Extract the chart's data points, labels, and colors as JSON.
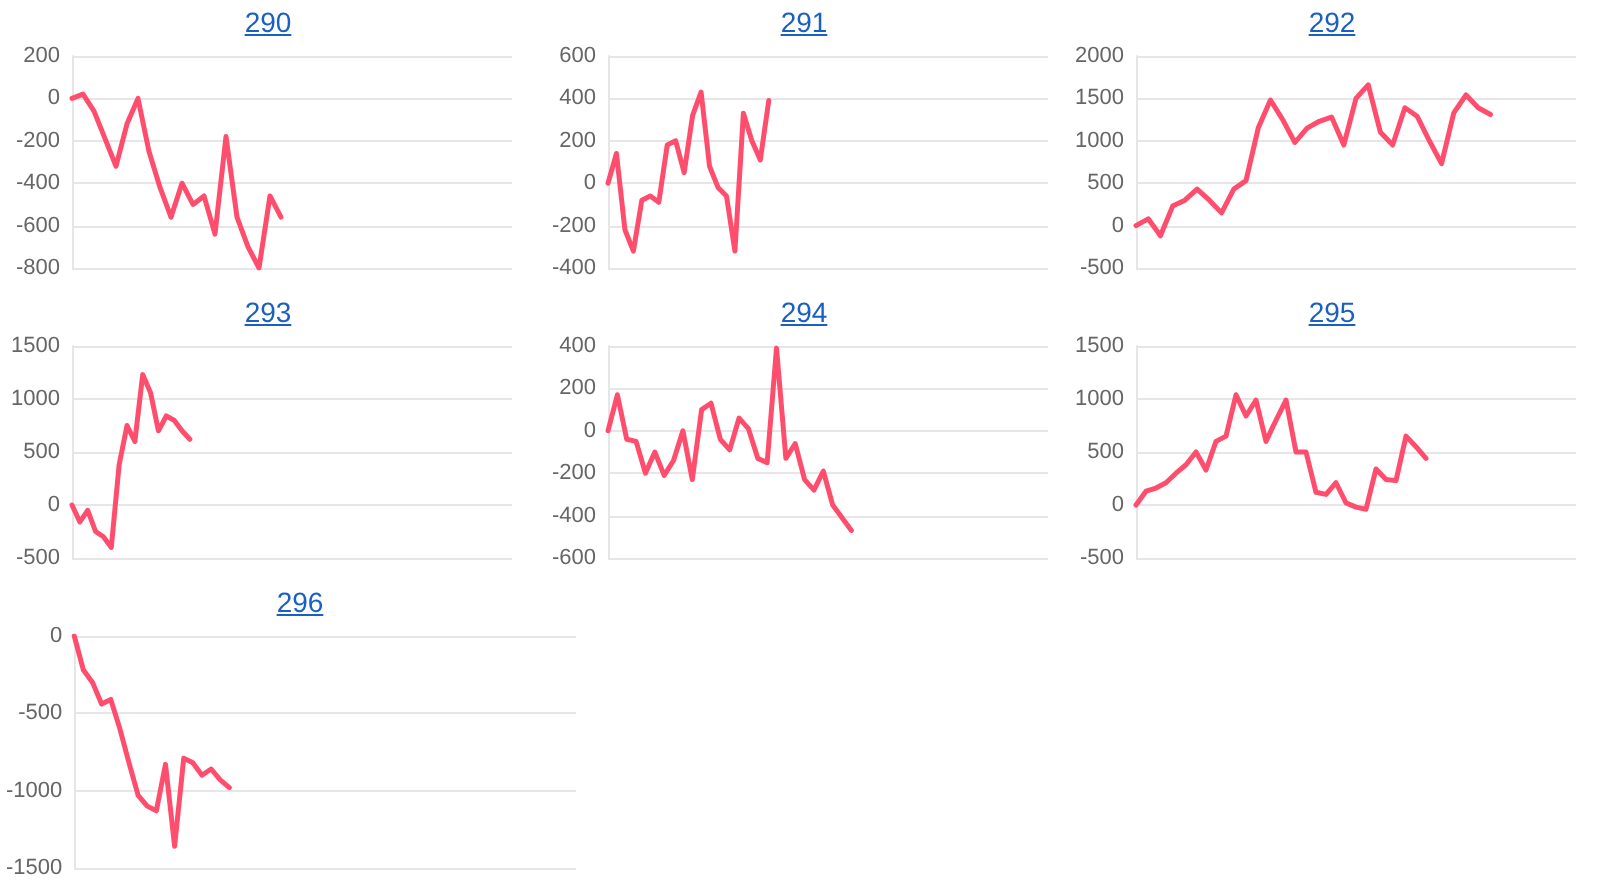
{
  "chart_data": [
    {
      "type": "line",
      "title": "290",
      "categories": [
        null,
        null,
        null,
        null,
        null,
        null,
        null,
        null,
        null,
        null,
        null,
        null,
        null,
        null,
        null,
        null,
        null,
        null,
        null,
        null,
        null,
        null,
        null,
        null,
        null,
        null,
        null,
        null,
        null,
        null,
        null,
        null,
        null,
        null,
        null,
        null,
        null,
        null,
        null,
        null,
        null
      ],
      "values": [
        0,
        20,
        -60,
        -190,
        -320,
        -120,
        0,
        -250,
        -420,
        -560,
        -400,
        -500,
        -460,
        -640,
        -180,
        -560,
        -700,
        -800,
        -460,
        -560,
        null,
        null,
        null,
        null,
        null,
        null,
        null,
        null,
        null,
        null,
        null,
        null,
        null,
        null,
        null,
        null,
        null,
        null,
        null,
        null,
        null
      ],
      "color": "#ff4d6d",
      "ylim": [
        -800,
        200
      ],
      "yticks": [
        -800,
        -600,
        -400,
        -200,
        0,
        200
      ],
      "grid": "y",
      "tick_labels": "y"
    },
    {
      "type": "line",
      "title": "291",
      "categories": [
        null,
        null,
        null,
        null,
        null,
        null,
        null,
        null,
        null,
        null,
        null,
        null,
        null,
        null,
        null,
        null,
        null,
        null,
        null,
        null,
        null,
        null,
        null,
        null,
        null,
        null,
        null,
        null,
        null,
        null,
        null,
        null,
        null,
        null,
        null,
        null,
        null,
        null,
        null,
        null,
        null,
        null,
        null,
        null,
        null,
        null,
        null,
        null,
        null,
        null,
        null,
        null,
        null
      ],
      "values": [
        0,
        140,
        -220,
        -320,
        -80,
        -60,
        -90,
        180,
        200,
        50,
        320,
        430,
        80,
        -20,
        -60,
        -320,
        330,
        200,
        110,
        390,
        null,
        null,
        null,
        null,
        null,
        null,
        null,
        null,
        null,
        null,
        null,
        null,
        null,
        null,
        null,
        null,
        null,
        null,
        null,
        null,
        null,
        null,
        null,
        null,
        null,
        null,
        null,
        null,
        null,
        null,
        null,
        null,
        null
      ],
      "color": "#ff4d6d",
      "ylim": [
        -400,
        600
      ],
      "yticks": [
        -400,
        -200,
        0,
        200,
        400,
        600
      ],
      "grid": "y",
      "tick_labels": "y"
    },
    {
      "type": "line",
      "title": "292",
      "categories": [
        null,
        null,
        null,
        null,
        null,
        null,
        null,
        null,
        null,
        null,
        null,
        null,
        null,
        null,
        null,
        null,
        null,
        null,
        null,
        null,
        null,
        null,
        null,
        null,
        null,
        null,
        null,
        null,
        null,
        null,
        null,
        null,
        null,
        null,
        null,
        null,
        null
      ],
      "values": [
        0,
        80,
        -120,
        230,
        300,
        430,
        300,
        150,
        430,
        530,
        1150,
        1480,
        1250,
        980,
        1150,
        1230,
        1280,
        950,
        1500,
        1660,
        1100,
        950,
        1390,
        1290,
        1000,
        730,
        1330,
        1540,
        1390,
        1310,
        null,
        null,
        null,
        null,
        null,
        null,
        null
      ],
      "color": "#ff4d6d",
      "ylim": [
        -500,
        2000
      ],
      "yticks": [
        -500,
        0,
        500,
        1000,
        1500,
        2000
      ],
      "grid": "y",
      "tick_labels": "y"
    },
    {
      "type": "line",
      "title": "293",
      "categories": [
        null,
        null,
        null,
        null,
        null,
        null,
        null,
        null,
        null,
        null,
        null,
        null,
        null,
        null,
        null,
        null,
        null,
        null,
        null,
        null,
        null,
        null,
        null,
        null,
        null,
        null,
        null,
        null,
        null,
        null,
        null,
        null,
        null,
        null,
        null,
        null,
        null,
        null,
        null,
        null,
        null,
        null,
        null,
        null,
        null,
        null,
        null,
        null,
        null,
        null,
        null,
        null,
        null,
        null,
        null,
        null,
        null
      ],
      "values": [
        0,
        -160,
        -50,
        -250,
        -300,
        -400,
        380,
        750,
        600,
        1230,
        1060,
        700,
        840,
        800,
        700,
        620,
        null,
        null,
        null,
        null,
        null,
        null,
        null,
        null,
        null,
        null,
        null,
        null,
        null,
        null,
        null,
        null,
        null,
        null,
        null,
        null,
        null,
        null,
        null,
        null,
        null,
        null,
        null,
        null,
        null,
        null,
        null,
        null,
        null,
        null,
        null,
        null,
        null,
        null,
        null,
        null,
        null
      ],
      "color": "#ff4d6d",
      "ylim": [
        -500,
        1500
      ],
      "yticks": [
        -500,
        0,
        500,
        1000,
        1500
      ],
      "grid": "y",
      "tick_labels": "y"
    },
    {
      "type": "line",
      "title": "294",
      "categories": [
        null,
        null,
        null,
        null,
        null,
        null,
        null,
        null,
        null,
        null,
        null,
        null,
        null,
        null,
        null,
        null,
        null,
        null,
        null,
        null,
        null,
        null,
        null,
        null,
        null,
        null,
        null,
        null,
        null,
        null,
        null,
        null,
        null,
        null,
        null,
        null,
        null,
        null,
        null,
        null,
        null,
        null,
        null,
        null,
        null,
        null,
        null,
        null
      ],
      "values": [
        0,
        170,
        -40,
        -50,
        -200,
        -100,
        -210,
        -140,
        0,
        -230,
        100,
        130,
        -40,
        -90,
        60,
        10,
        -130,
        -150,
        390,
        -130,
        -60,
        -230,
        -280,
        -190,
        -350,
        -410,
        -470,
        null,
        null,
        null,
        null,
        null,
        null,
        null,
        null,
        null,
        null,
        null,
        null,
        null,
        null,
        null,
        null,
        null,
        null,
        null,
        null,
        null
      ],
      "color": "#ff4d6d",
      "ylim": [
        -600,
        400
      ],
      "yticks": [
        -600,
        -400,
        -200,
        0,
        200,
        400
      ],
      "grid": "y",
      "tick_labels": "y"
    },
    {
      "type": "line",
      "title": "295",
      "categories": [
        null,
        null,
        null,
        null,
        null,
        null,
        null,
        null,
        null,
        null,
        null,
        null,
        null,
        null,
        null,
        null,
        null,
        null,
        null,
        null,
        null,
        null,
        null,
        null,
        null,
        null,
        null,
        null,
        null,
        null,
        null,
        null,
        null,
        null,
        null,
        null,
        null,
        null,
        null,
        null,
        null,
        null,
        null,
        null,
        null
      ],
      "values": [
        0,
        130,
        160,
        210,
        300,
        380,
        500,
        330,
        600,
        650,
        1040,
        840,
        990,
        600,
        800,
        990,
        500,
        500,
        120,
        100,
        210,
        20,
        -20,
        -40,
        340,
        240,
        230,
        650,
        550,
        440,
        null,
        null,
        null,
        null,
        null,
        null,
        null,
        null,
        null,
        null,
        null,
        null,
        null,
        null,
        null
      ],
      "color": "#ff4d6d",
      "ylim": [
        -500,
        1500
      ],
      "yticks": [
        -500,
        0,
        500,
        1000,
        1500
      ],
      "grid": "y",
      "tick_labels": "y"
    },
    {
      "type": "line",
      "title": "296",
      "categories": [
        null,
        null,
        null,
        null,
        null,
        null,
        null,
        null,
        null,
        null,
        null,
        null,
        null,
        null,
        null,
        null,
        null,
        null,
        null,
        null,
        null,
        null,
        null,
        null,
        null,
        null,
        null,
        null,
        null,
        null,
        null,
        null,
        null,
        null,
        null,
        null,
        null,
        null,
        null,
        null,
        null,
        null,
        null,
        null,
        null,
        null,
        null,
        null,
        null,
        null,
        null,
        null,
        null,
        null,
        null,
        null
      ],
      "values": [
        0,
        -220,
        -300,
        -440,
        -410,
        -600,
        -820,
        -1030,
        -1100,
        -1130,
        -830,
        -1360,
        -790,
        -820,
        -900,
        -860,
        -930,
        -980,
        null,
        null,
        null,
        null,
        null,
        null,
        null,
        null,
        null,
        null,
        null,
        null,
        null,
        null,
        null,
        null,
        null,
        null,
        null,
        null,
        null,
        null,
        null,
        null,
        null,
        null,
        null,
        null,
        null,
        null,
        null,
        null,
        null,
        null,
        null,
        null,
        null,
        null
      ],
      "color": "#ff4d6d",
      "ylim": [
        -1500,
        0
      ],
      "yticks": [
        -1500,
        -1000,
        -500,
        0
      ],
      "grid": "y",
      "tick_labels": "y"
    }
  ]
}
